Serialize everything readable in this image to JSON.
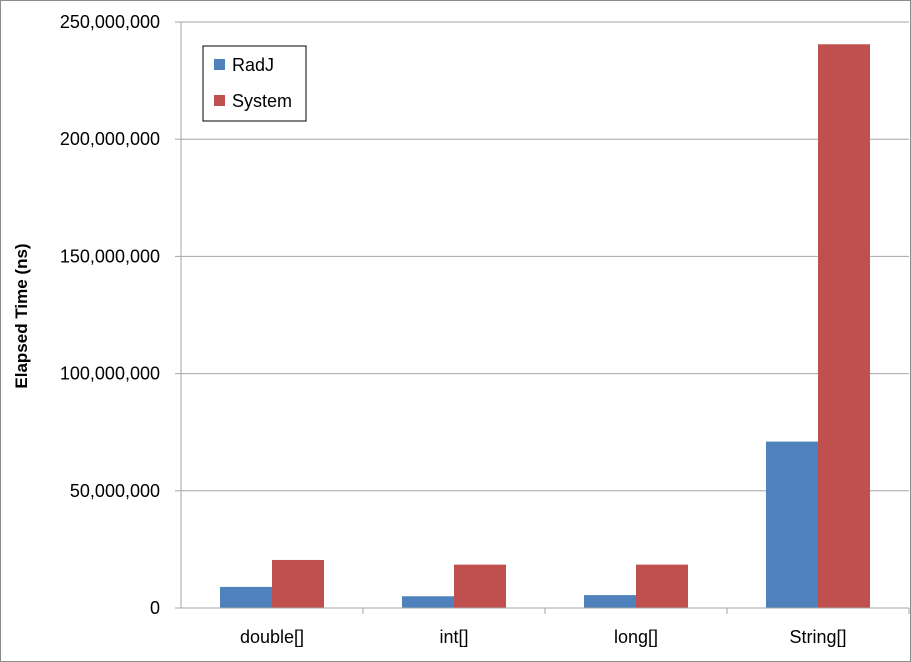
{
  "chart_data": {
    "type": "bar",
    "title": "",
    "xlabel": "",
    "ylabel": "Elapsed Time (ns)",
    "categories": [
      "double[]",
      "int[]",
      "long[]",
      "String[]"
    ],
    "series": [
      {
        "name": "RadJ",
        "color": "#4f81bd",
        "values": [
          9000000,
          5000000,
          5500000,
          71000000
        ]
      },
      {
        "name": "System",
        "color": "#c0504d",
        "values": [
          20500000,
          18500000,
          18500000,
          240500000
        ]
      }
    ],
    "ylim": [
      0,
      250000000
    ],
    "yticks": [
      0,
      50000000,
      100000000,
      150000000,
      200000000,
      250000000
    ],
    "ytick_labels": [
      "0",
      "50,000,000",
      "100,000,000",
      "150,000,000",
      "200,000,000",
      "250,000,000"
    ],
    "grid": true,
    "legend_position": "top-left",
    "gridline_color": "#a6a6a6",
    "axis_color": "#a6a6a6"
  }
}
